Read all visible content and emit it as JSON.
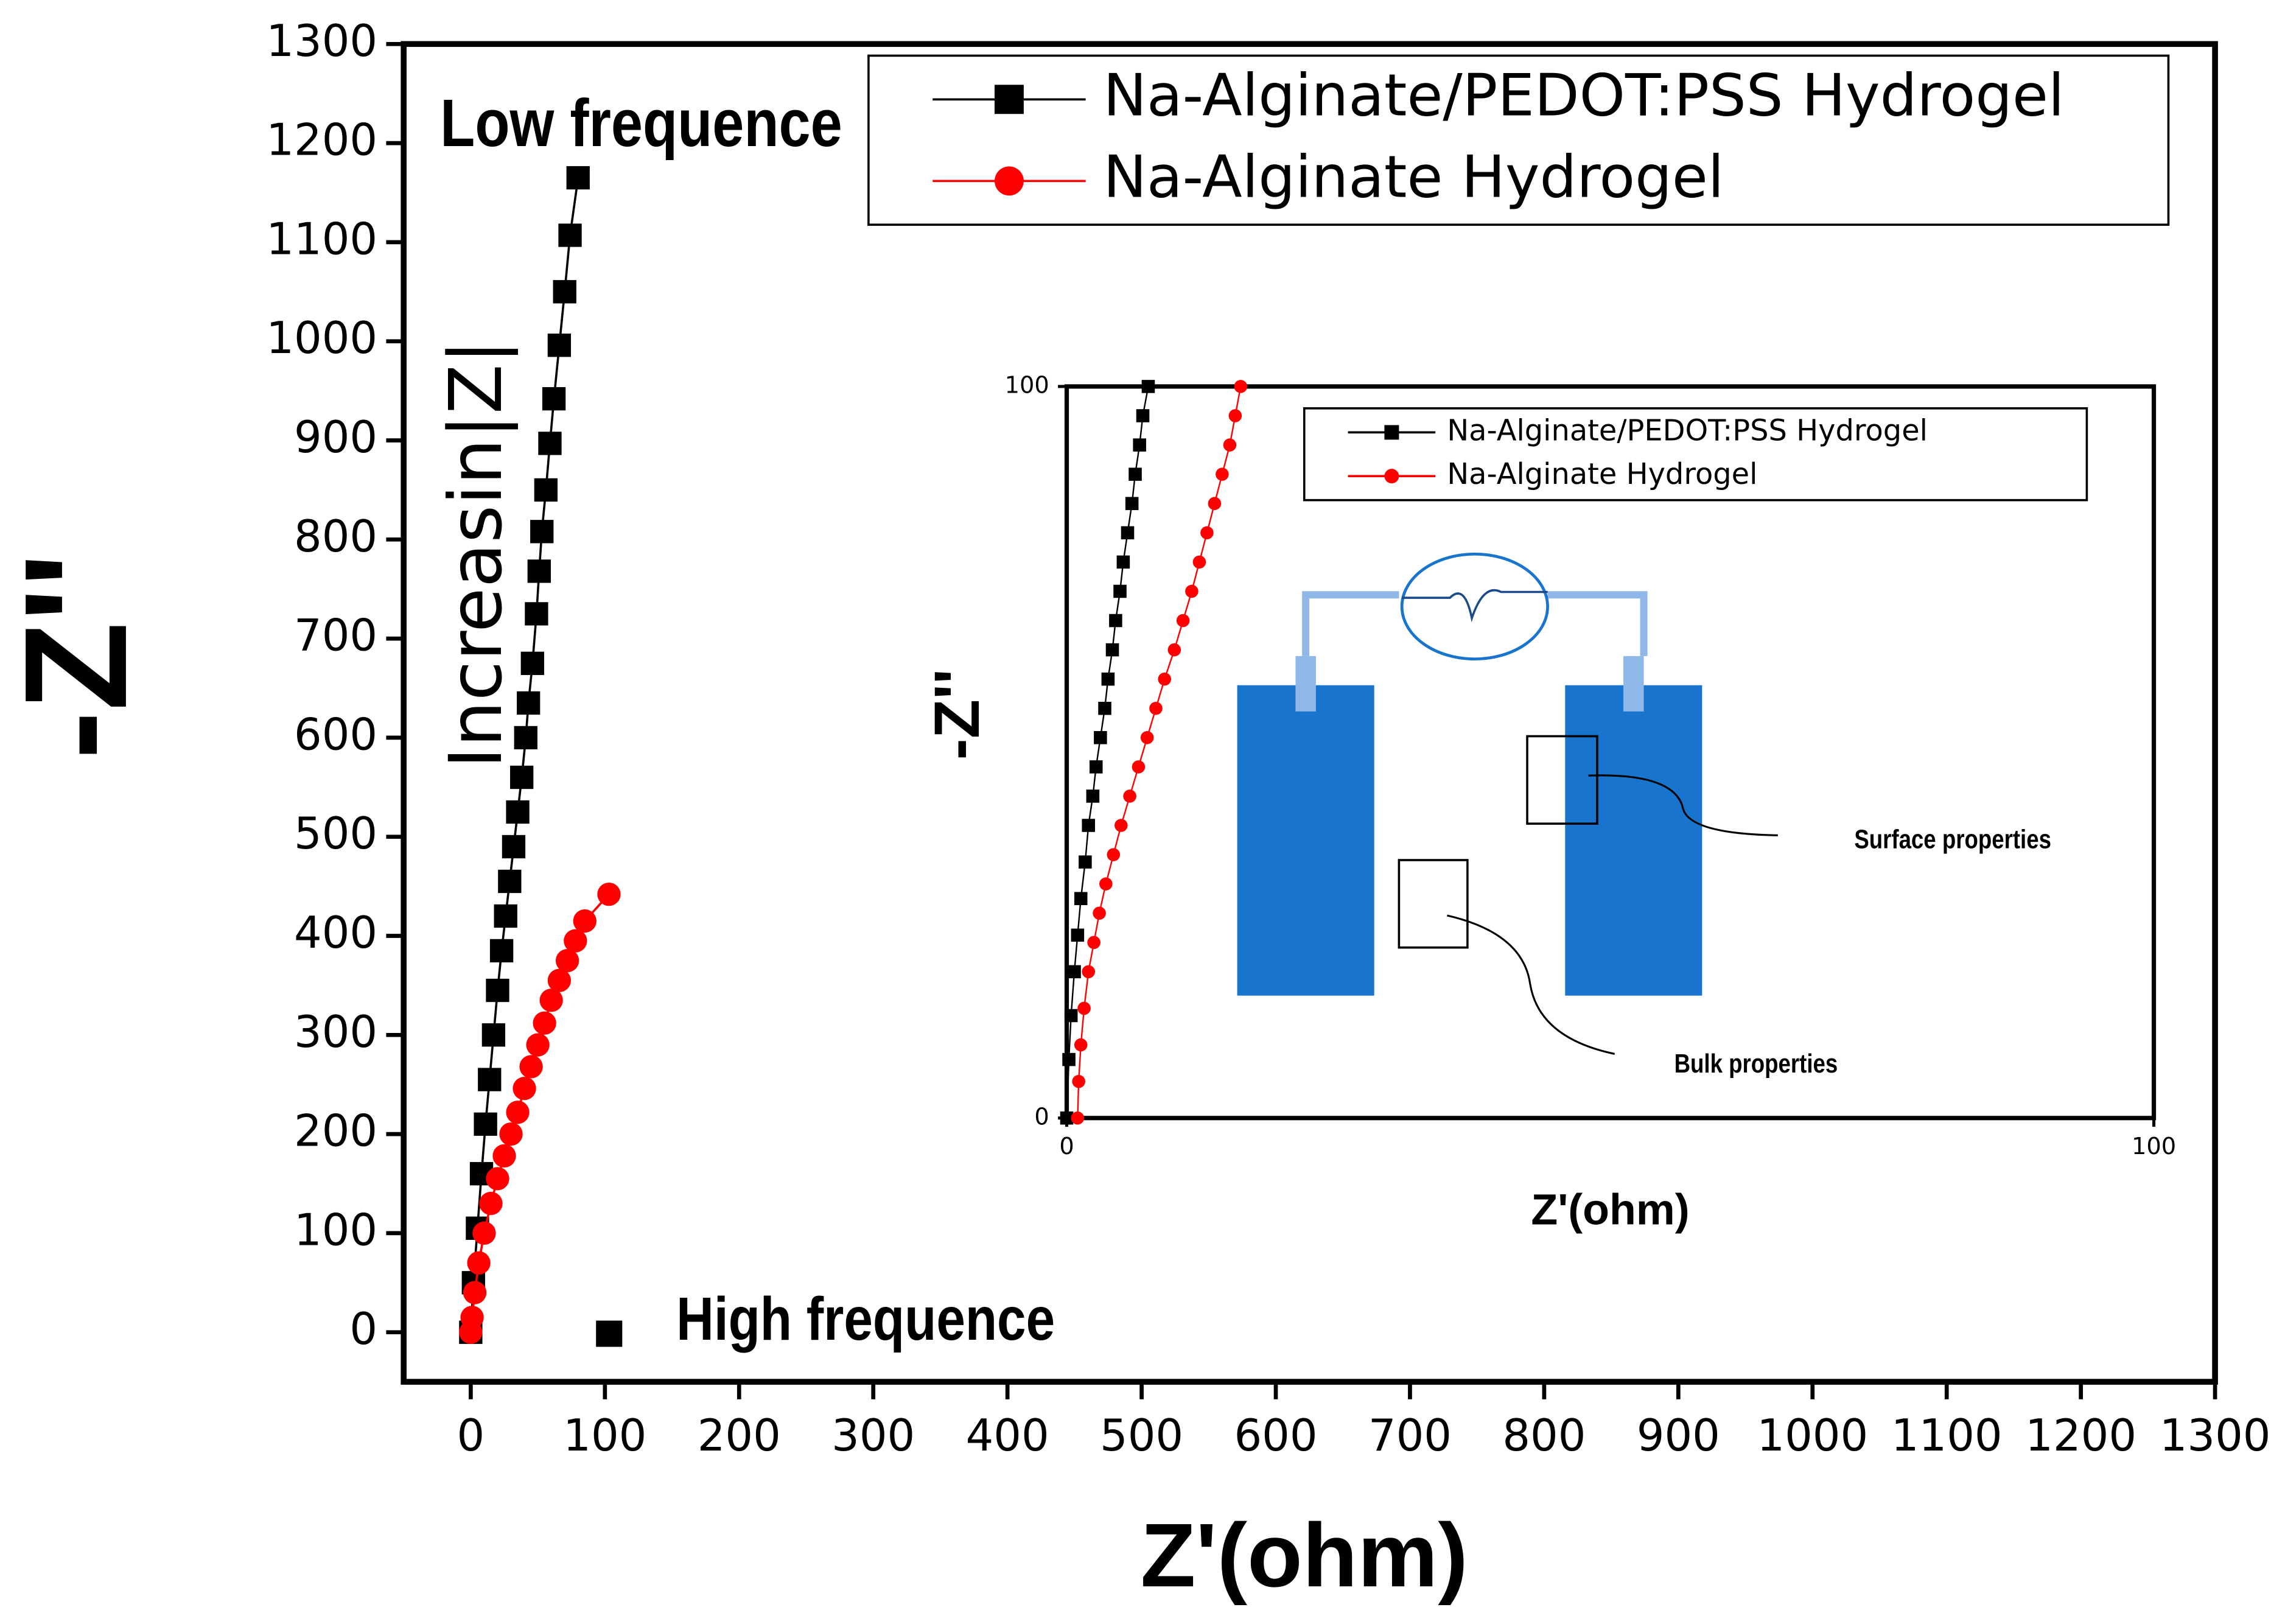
{
  "chart_data": [
    {
      "type": "line",
      "x_label": "Z'(ohm)",
      "y_label": "-Z''",
      "xlim": [
        -50,
        1300
      ],
      "ylim": [
        -50,
        1300
      ],
      "xticks": [
        0,
        100,
        200,
        300,
        400,
        500,
        600,
        700,
        800,
        900,
        1000,
        1100,
        1200,
        1300
      ],
      "yticks": [
        0,
        100,
        200,
        300,
        400,
        500,
        600,
        700,
        800,
        900,
        1000,
        1100,
        1200,
        1300
      ],
      "legend": "upper right",
      "annotations": [
        "Low frequence",
        "High frequence",
        "Increasin|Z|"
      ],
      "series": [
        {
          "name": "Na-Alginate/PEDOT:PSS Hydrogel",
          "color": "#000000",
          "marker": "square",
          "x": [
            0,
            2,
            5,
            8,
            11,
            14,
            17,
            20,
            23,
            26,
            29,
            32,
            35,
            38,
            41,
            43,
            46,
            49,
            51,
            53,
            56,
            59,
            62,
            66,
            70,
            74,
            80
          ],
          "values": [
            0,
            50,
            105,
            160,
            210,
            255,
            300,
            345,
            385,
            420,
            455,
            490,
            525,
            560,
            600,
            635,
            675,
            725,
            768,
            808,
            850,
            897,
            942,
            996,
            1050,
            1107,
            1165
          ]
        },
        {
          "name": "Na-Alginate Hydrogel",
          "color": "#ff0000",
          "marker": "circle",
          "x": [
            0,
            1,
            3,
            6,
            10,
            15,
            20,
            25,
            30,
            35,
            40,
            45,
            50,
            55,
            60,
            66,
            72,
            78,
            85,
            103
          ],
          "values": [
            0,
            15,
            40,
            70,
            100,
            130,
            155,
            178,
            200,
            222,
            246,
            268,
            290,
            312,
            335,
            355,
            375,
            395,
            415,
            442
          ]
        }
      ]
    },
    {
      "type": "line",
      "x_label": "Z'(ohm)",
      "y_label": "-Z''",
      "xlim": [
        0,
        100
      ],
      "ylim": [
        0,
        100
      ],
      "xticks": [
        0,
        100
      ],
      "yticks": [
        0,
        100
      ],
      "legend": "upper right",
      "annotations": [
        "Surface properties",
        "Bulk properties"
      ],
      "series": [
        {
          "name": "Na-Alginate/PEDOT:PSS Hydrogel",
          "color": "#000000",
          "marker": "square",
          "x": [
            0,
            0.2,
            0.4,
            0.7,
            1,
            1.3,
            1.7,
            2,
            2.4,
            2.7,
            3.1,
            3.5,
            3.8,
            4.2,
            4.5,
            4.9,
            5.2,
            5.6,
            6,
            6.3,
            6.7,
            7,
            7.5
          ],
          "values": [
            0,
            8,
            14,
            20,
            25,
            30,
            35,
            40,
            44,
            48,
            52,
            56,
            60,
            64,
            68,
            72,
            76,
            80,
            84,
            88,
            92,
            96,
            100
          ]
        },
        {
          "name": "Na-Alginate Hydrogel",
          "color": "#ff0000",
          "marker": "circle",
          "x": [
            1,
            1.1,
            1.3,
            1.6,
            2,
            2.5,
            3,
            3.6,
            4.3,
            5,
            5.8,
            6.6,
            7.4,
            8.2,
            9,
            9.9,
            10.7,
            11.5,
            12.2,
            12.9,
            13.6,
            14.3,
            15,
            15.5,
            16
          ],
          "values": [
            0,
            5,
            10,
            15,
            20,
            24,
            28,
            32,
            36,
            40,
            44,
            48,
            52,
            56,
            60,
            64,
            68,
            72,
            76,
            80,
            84,
            88,
            92,
            96,
            100
          ]
        }
      ]
    }
  ]
}
